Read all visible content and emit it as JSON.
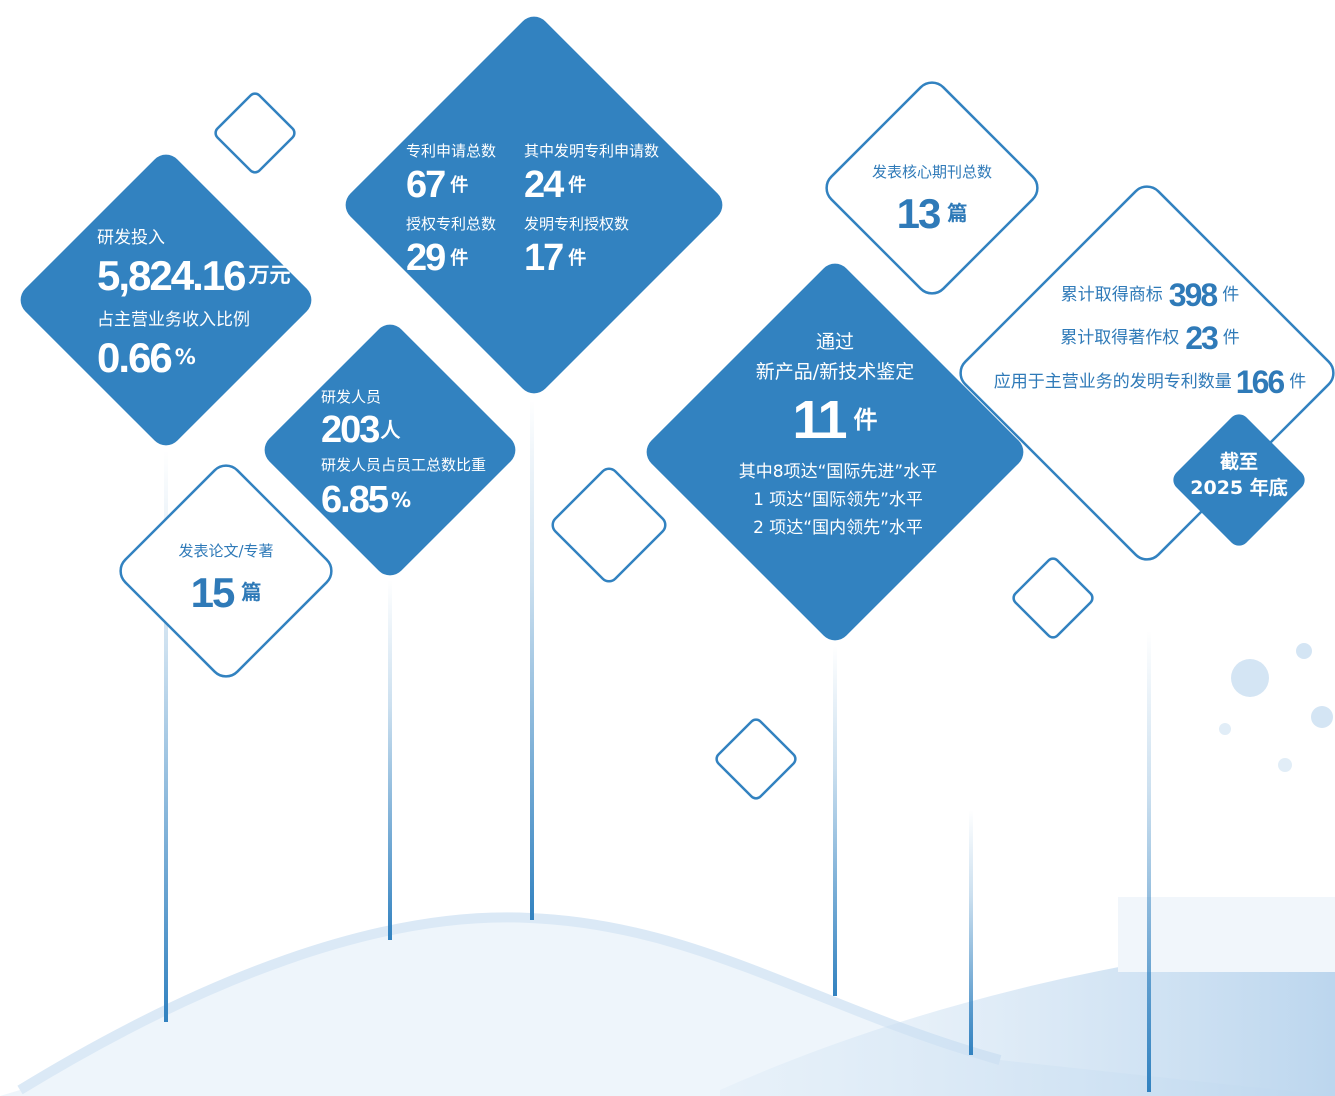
{
  "rd_investment": {
    "label": "研发投入",
    "amount": "5,824.16",
    "amount_unit": "万元",
    "ratio_label": "占主营业务收入比例",
    "ratio": 0.66,
    "ratio_unit": "%"
  },
  "patents": [
    {
      "label": "专利申请总数",
      "value": 67,
      "unit": "件"
    },
    {
      "label": "其中发明专利申请数",
      "value": 24,
      "unit": "件"
    },
    {
      "label": "授权专利总数",
      "value": 29,
      "unit": "件"
    },
    {
      "label": "发明专利授权数",
      "value": 17,
      "unit": "件"
    }
  ],
  "rd_personnel": {
    "label": "研发人员",
    "count": 203,
    "count_unit": "人",
    "ratio_label": "研发人员占员工总数比重",
    "ratio": 6.85,
    "ratio_unit": "%"
  },
  "papers": {
    "label": "发表论文/专著",
    "value": 15,
    "unit": "篇"
  },
  "core_journals": {
    "label": "发表核心期刊总数",
    "value": 13,
    "unit": "篇"
  },
  "appraisal": {
    "line1": "通过",
    "line2": "新产品/新技术鉴定",
    "value": 11,
    "unit": "件",
    "details": [
      "其中8项达“国际先进”水平",
      "1 项达“国际领先”水平",
      "2 项达“国内领先”水平"
    ]
  },
  "ip": [
    {
      "label": "累计取得商标",
      "value": 398,
      "unit": "件"
    },
    {
      "label": "累计取得著作权",
      "value": 23,
      "unit": "件"
    },
    {
      "label": "应用于主营业务的发明专利数量",
      "value": 166,
      "unit": "件"
    }
  ],
  "as_of": {
    "line1": "截至",
    "line2": "2025 年底"
  }
}
